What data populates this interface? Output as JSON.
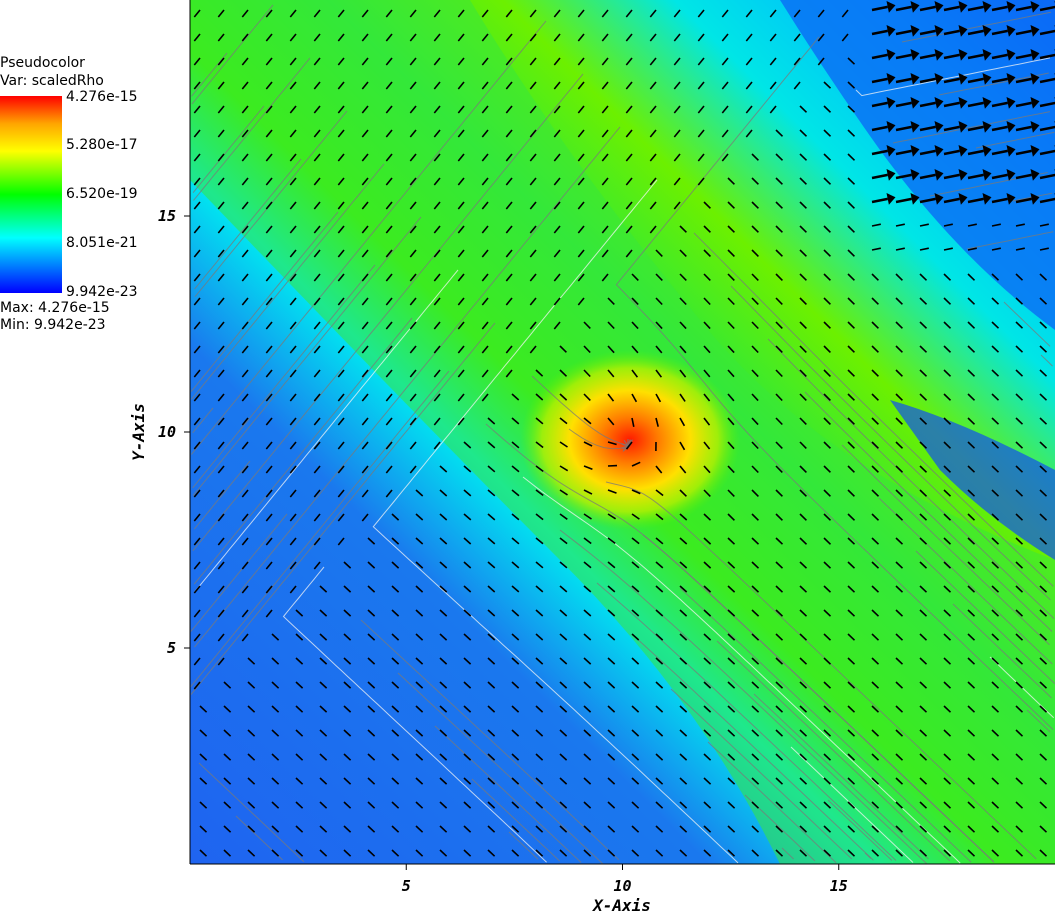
{
  "legend": {
    "title": "Pseudocolor",
    "var_label": "Var: scaledRho",
    "ticks": [
      "4.276e-15",
      "5.280e-17",
      "6.520e-19",
      "8.051e-21",
      "9.942e-23"
    ],
    "max_label": "Max: 4.276e-15",
    "min_label": "Min: 9.942e-23"
  },
  "chart_data": {
    "type": "heatmap",
    "xlabel": "X-Axis",
    "ylabel": "Y-Axis",
    "xlim": [
      0,
      20
    ],
    "ylim": [
      0,
      20
    ],
    "xticks": [
      5,
      10,
      15
    ],
    "yticks": [
      5,
      10,
      15
    ],
    "variable": "scaledRho",
    "color_min": 9.942e-23,
    "color_max": 4.276e-15,
    "peak": {
      "x": 10,
      "y": 9.8
    },
    "colors": {
      "low": "#0040ff",
      "mid": "#00ff00",
      "high": "#ff0000"
    }
  }
}
